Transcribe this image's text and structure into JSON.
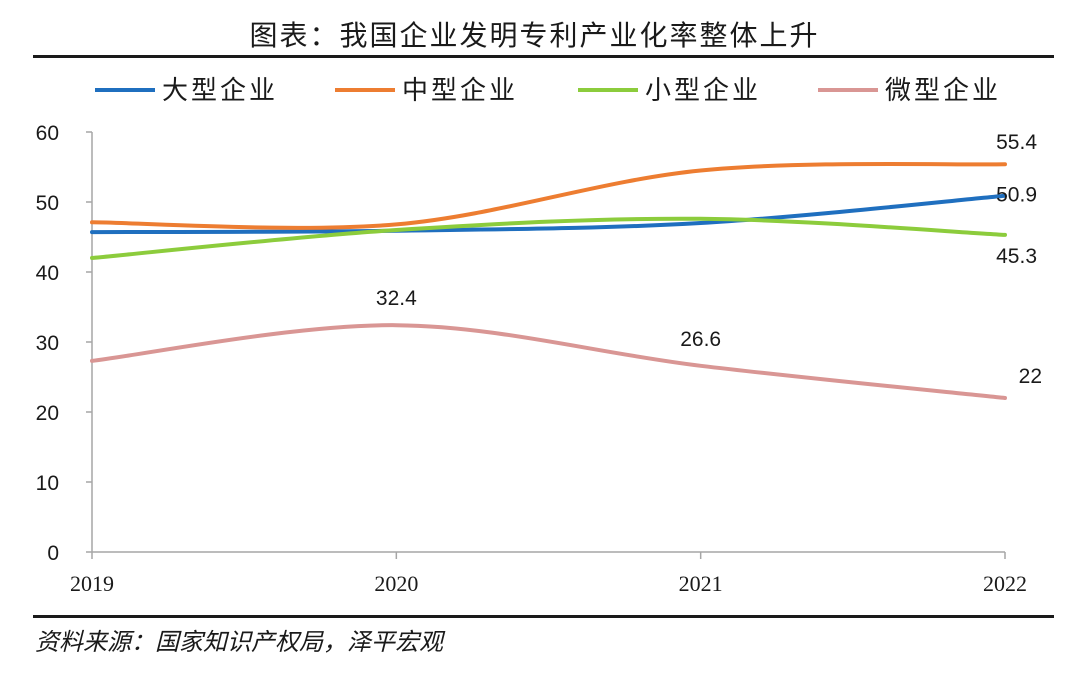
{
  "title": "图表：我国企业发明专利产业化率整体上升",
  "source": "资料来源：国家知识产权局，泽平宏观",
  "chart_data": {
    "type": "line",
    "title": "图表：我国企业发明专利产业化率整体上升",
    "xlabel": "",
    "ylabel": "",
    "x": [
      "2019",
      "2020",
      "2021",
      "2022"
    ],
    "ylim": [
      0,
      60
    ],
    "yticks": [
      0,
      10,
      20,
      30,
      40,
      50,
      60
    ],
    "grid": false,
    "legend_position": "top",
    "series": [
      {
        "name": "大型企业",
        "color": "#1f6fbf",
        "values": [
          45.7,
          45.9,
          47.0,
          50.9
        ],
        "labels": [
          "",
          "",
          "",
          "50.9"
        ]
      },
      {
        "name": "中型企业",
        "color": "#ed7d31",
        "values": [
          47.1,
          46.8,
          54.5,
          55.4
        ],
        "labels": [
          "",
          "",
          "",
          "55.4"
        ]
      },
      {
        "name": "小型企业",
        "color": "#8ccc3c",
        "values": [
          42.0,
          46.0,
          47.6,
          45.3
        ],
        "labels": [
          "",
          "",
          "",
          "45.3"
        ]
      },
      {
        "name": "微型企业",
        "color": "#d99694",
        "values": [
          27.3,
          32.4,
          26.6,
          22.0
        ],
        "labels": [
          "",
          "32.4",
          "26.6",
          "22"
        ]
      }
    ]
  }
}
